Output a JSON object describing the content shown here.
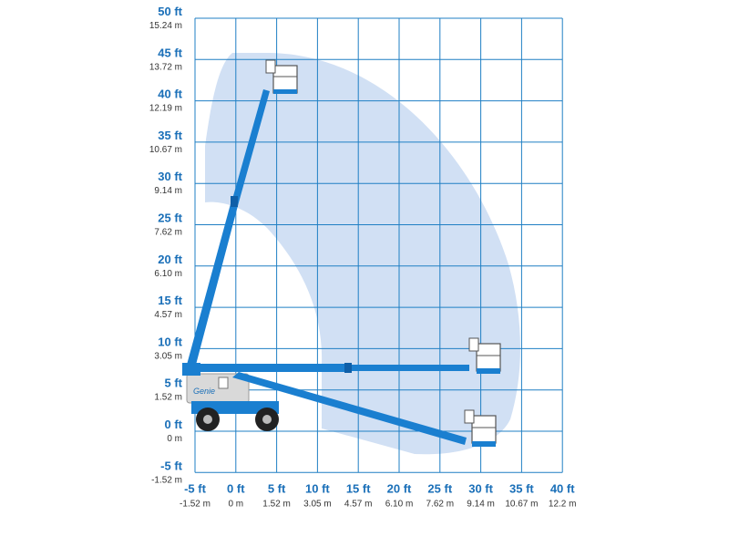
{
  "colors": {
    "grid": "#1f7fc4",
    "envelope": "#c9daf2",
    "boom": "#1a7fd0",
    "boom_dark": "#0f5fa8",
    "chassis": "#d9d9d9",
    "label_ft": "#1a6fb8",
    "label_m": "#333333"
  },
  "y_axis": {
    "ticks": [
      {
        "ft": "50 ft",
        "m": "15.24 m"
      },
      {
        "ft": "45 ft",
        "m": "13.72 m"
      },
      {
        "ft": "40 ft",
        "m": "12.19 m"
      },
      {
        "ft": "35 ft",
        "m": "10.67 m"
      },
      {
        "ft": "30 ft",
        "m": "9.14 m"
      },
      {
        "ft": "25 ft",
        "m": "7.62 m"
      },
      {
        "ft": "20 ft",
        "m": "6.10 m"
      },
      {
        "ft": "15 ft",
        "m": "4.57 m"
      },
      {
        "ft": "10 ft",
        "m": "3.05 m"
      },
      {
        "ft": "5 ft",
        "m": "1.52 m"
      },
      {
        "ft": "0 ft",
        "m": "0 m"
      },
      {
        "ft": "-5 ft",
        "m": "-1.52 m"
      }
    ]
  },
  "x_axis": {
    "ticks": [
      {
        "ft": "-5 ft",
        "m": "-1.52 m"
      },
      {
        "ft": "0 ft",
        "m": "0 m"
      },
      {
        "ft": "5 ft",
        "m": "1.52 m"
      },
      {
        "ft": "10 ft",
        "m": "3.05 m"
      },
      {
        "ft": "15 ft",
        "m": "4.57 m"
      },
      {
        "ft": "20 ft",
        "m": "6.10 m"
      },
      {
        "ft": "25 ft",
        "m": "7.62 m"
      },
      {
        "ft": "30 ft",
        "m": "9.14 m"
      },
      {
        "ft": "35 ft",
        "m": "10.67 m"
      },
      {
        "ft": "40 ft",
        "m": "12.2 m"
      }
    ]
  },
  "machine": {
    "logo_text": "Genie"
  }
}
